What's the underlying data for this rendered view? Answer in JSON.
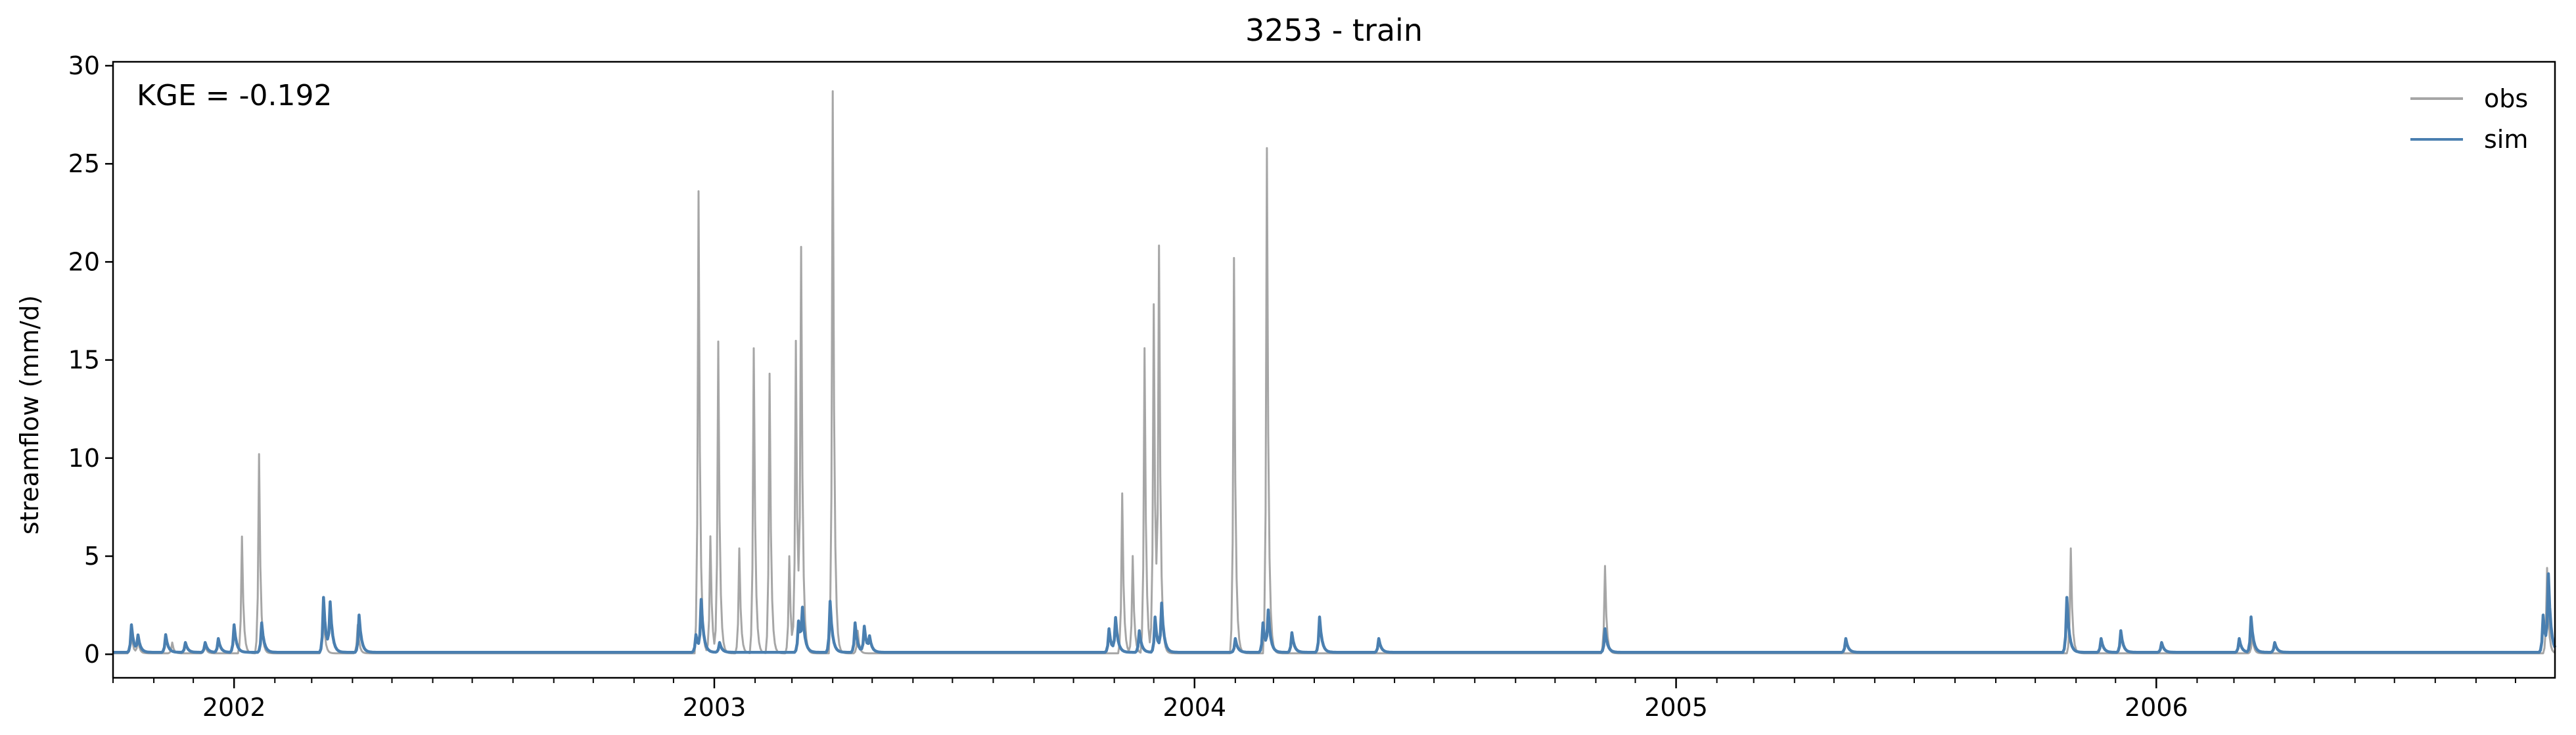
{
  "chart_data": {
    "type": "line",
    "title": "3253 - train",
    "ylabel": "streamflow (mm/d)",
    "xlabel": "",
    "annotation": "KGE = -0.192",
    "xlim": [
      "2001-10-01",
      "2006-10-31"
    ],
    "ylim": [
      -1.2,
      30.2
    ],
    "yticks": [
      0,
      5,
      10,
      15,
      20,
      25,
      30
    ],
    "xticks": [
      {
        "date": "2002-01-01",
        "label": "2002"
      },
      {
        "date": "2003-01-01",
        "label": "2003"
      },
      {
        "date": "2004-01-01",
        "label": "2004"
      },
      {
        "date": "2005-01-01",
        "label": "2005"
      },
      {
        "date": "2006-01-01",
        "label": "2006"
      }
    ],
    "minor_ticks": "monthly",
    "grid": false,
    "legend_position": "top-right",
    "series": [
      {
        "name": "obs",
        "color": "#a6a6a6",
        "baseline": 0.05,
        "peaks": [
          [
            "2001-10-15",
            1.2
          ],
          [
            "2001-10-20",
            0.8
          ],
          [
            "2001-11-15",
            0.6
          ],
          [
            "2001-12-10",
            0.5
          ],
          [
            "2002-01-07",
            6.0
          ],
          [
            "2002-01-20",
            10.2
          ],
          [
            "2002-03-10",
            2.4
          ],
          [
            "2002-04-05",
            1.5
          ],
          [
            "2002-12-20",
            23.6
          ],
          [
            "2002-12-29",
            6.0
          ],
          [
            "2003-01-04",
            15.9
          ],
          [
            "2003-01-20",
            5.4
          ],
          [
            "2003-01-31",
            15.6
          ],
          [
            "2003-02-12",
            14.3
          ],
          [
            "2003-02-27",
            5.0
          ],
          [
            "2003-03-04",
            15.9
          ],
          [
            "2003-03-08",
            20.2
          ],
          [
            "2003-04-01",
            28.7
          ],
          [
            "2003-04-20",
            1.2
          ],
          [
            "2003-11-07",
            8.2
          ],
          [
            "2003-11-15",
            5.0
          ],
          [
            "2003-11-24",
            15.6
          ],
          [
            "2003-12-01",
            17.8
          ],
          [
            "2003-12-05",
            20.2
          ],
          [
            "2004-01-31",
            20.2
          ],
          [
            "2004-02-25",
            25.8
          ],
          [
            "2004-11-08",
            4.5
          ],
          [
            "2005-10-28",
            5.4
          ],
          [
            "2006-03-15",
            1.0
          ],
          [
            "2006-10-25",
            4.4
          ]
        ]
      },
      {
        "name": "sim",
        "color": "#4a7fb0",
        "baseline": 0.1,
        "peaks": [
          [
            "2001-10-15",
            1.5
          ],
          [
            "2001-10-20",
            0.9
          ],
          [
            "2001-11-10",
            1.0
          ],
          [
            "2001-11-25",
            0.6
          ],
          [
            "2001-12-10",
            0.6
          ],
          [
            "2001-12-20",
            0.8
          ],
          [
            "2002-01-01",
            1.5
          ],
          [
            "2002-01-22",
            1.6
          ],
          [
            "2002-03-10",
            2.9
          ],
          [
            "2002-03-15",
            2.5
          ],
          [
            "2002-04-06",
            2.0
          ],
          [
            "2002-12-18",
            1.0
          ],
          [
            "2002-12-22",
            2.7
          ],
          [
            "2003-01-05",
            0.6
          ],
          [
            "2003-03-06",
            1.7
          ],
          [
            "2003-03-09",
            2.1
          ],
          [
            "2003-03-30",
            2.7
          ],
          [
            "2003-04-18",
            1.6
          ],
          [
            "2003-04-25",
            1.4
          ],
          [
            "2003-04-29",
            0.8
          ],
          [
            "2003-10-28",
            1.3
          ],
          [
            "2003-11-02",
            1.8
          ],
          [
            "2003-11-20",
            1.2
          ],
          [
            "2003-12-02",
            1.9
          ],
          [
            "2003-12-07",
            2.5
          ],
          [
            "2004-02-01",
            0.8
          ],
          [
            "2004-02-22",
            1.6
          ],
          [
            "2004-02-26",
            2.1
          ],
          [
            "2004-03-15",
            1.1
          ],
          [
            "2004-04-05",
            1.9
          ],
          [
            "2004-05-20",
            0.8
          ],
          [
            "2004-11-08",
            1.3
          ],
          [
            "2005-05-10",
            0.8
          ],
          [
            "2005-10-25",
            2.9
          ],
          [
            "2005-11-20",
            0.8
          ],
          [
            "2005-12-05",
            1.2
          ],
          [
            "2006-01-05",
            0.6
          ],
          [
            "2006-03-05",
            0.8
          ],
          [
            "2006-03-14",
            1.9
          ],
          [
            "2006-04-01",
            0.6
          ],
          [
            "2006-10-22",
            2.0
          ],
          [
            "2006-10-26",
            3.9
          ]
        ]
      }
    ]
  }
}
